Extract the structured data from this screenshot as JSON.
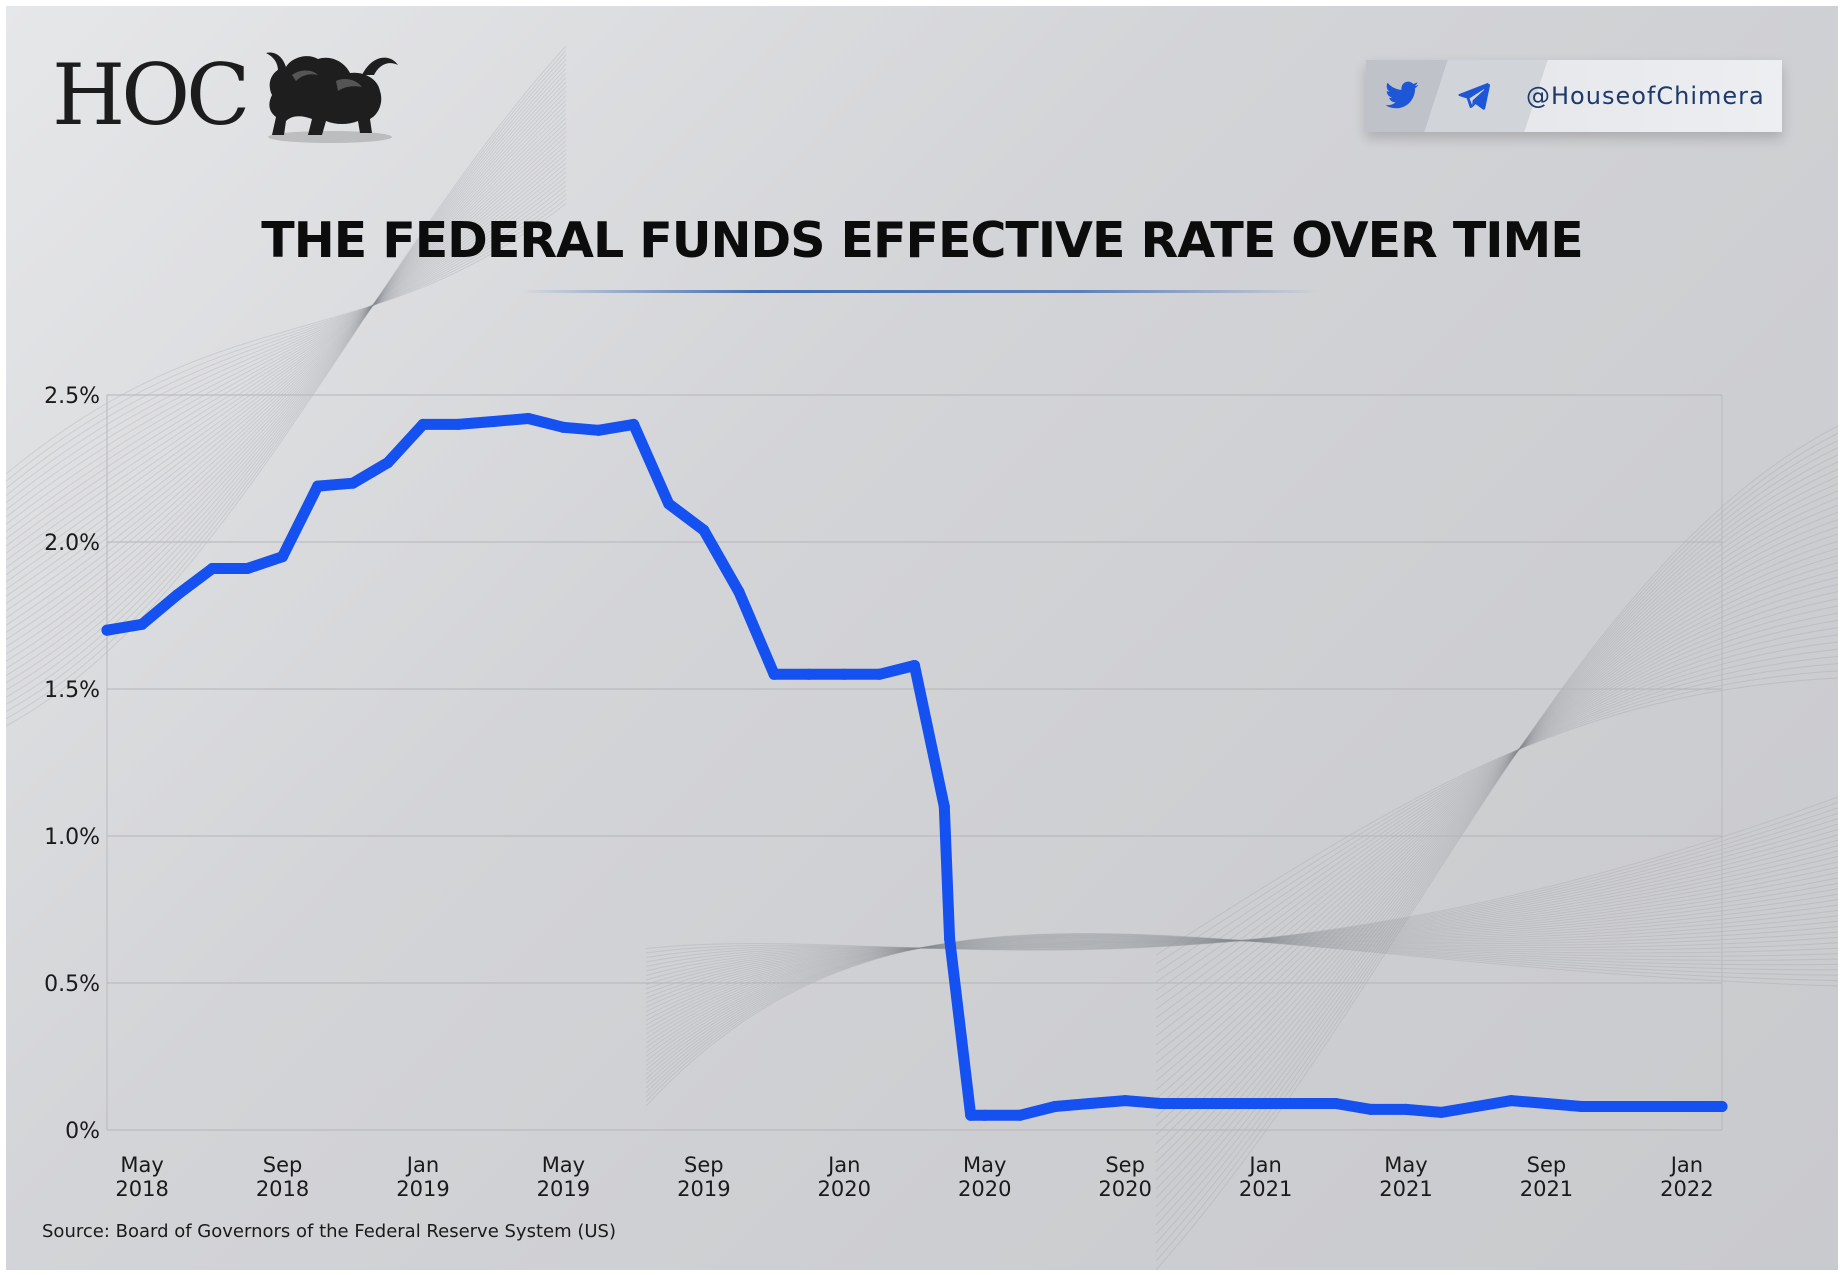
{
  "brand": {
    "logo_text": "HOC",
    "handle": "@HouseofChimera",
    "icons": [
      "twitter-icon",
      "telegram-icon",
      "lion-goat-emblem-icon"
    ],
    "accent_color": "#1550f0",
    "title_line_color": "#3f6db3"
  },
  "title": "THE FEDERAL FUNDS EFFECTIVE RATE OVER TIME",
  "source": "Source: Board of Governors of the Federal Reserve System (US)",
  "chart_data": {
    "type": "line",
    "title": "THE FEDERAL FUNDS EFFECTIVE RATE OVER TIME",
    "xlabel": "",
    "ylabel": "",
    "ylim": [
      0,
      2.5
    ],
    "yticks": [
      0,
      0.5,
      1.0,
      1.5,
      2.0,
      2.5
    ],
    "ytick_labels": [
      "0%",
      "0.5%",
      "1.0%",
      "1.5%",
      "2.0%",
      "2.5%"
    ],
    "grid": true,
    "x_start": "2018-04",
    "xtick_labels": [
      {
        "m": 1,
        "month": "May",
        "year": "2018"
      },
      {
        "m": 5,
        "month": "Sep",
        "year": "2018"
      },
      {
        "m": 9,
        "month": "Jan",
        "year": "2019"
      },
      {
        "m": 13,
        "month": "May",
        "year": "2019"
      },
      {
        "m": 17,
        "month": "Sep",
        "year": "2019"
      },
      {
        "m": 21,
        "month": "Jan",
        "year": "2020"
      },
      {
        "m": 25,
        "month": "May",
        "year": "2020"
      },
      {
        "m": 29,
        "month": "Sep",
        "year": "2020"
      },
      {
        "m": 33,
        "month": "Jan",
        "year": "2021"
      },
      {
        "m": 37,
        "month": "May",
        "year": "2021"
      },
      {
        "m": 41,
        "month": "Sep",
        "year": "2021"
      },
      {
        "m": 45,
        "month": "Jan",
        "year": "2022"
      }
    ],
    "series": [
      {
        "name": "Federal Funds Effective Rate",
        "color": "#1550f0",
        "x": [
          0,
          1,
          2,
          3,
          4,
          5,
          6,
          7,
          8,
          9,
          10,
          11,
          12,
          13,
          14,
          15,
          16,
          17,
          18,
          19,
          20,
          21,
          22,
          23,
          23.85,
          24,
          24.6,
          25,
          26,
          27,
          28,
          29,
          30,
          31,
          32,
          33,
          34,
          35,
          36,
          37,
          38,
          39,
          40,
          41,
          42,
          43,
          44,
          45,
          46
        ],
        "values": [
          1.7,
          1.72,
          1.82,
          1.91,
          1.91,
          1.95,
          2.19,
          2.2,
          2.27,
          2.4,
          2.4,
          2.41,
          2.42,
          2.39,
          2.38,
          2.4,
          2.13,
          2.04,
          1.83,
          1.55,
          1.55,
          1.55,
          1.55,
          1.58,
          1.1,
          0.65,
          0.05,
          0.05,
          0.05,
          0.08,
          0.09,
          0.1,
          0.09,
          0.09,
          0.09,
          0.09,
          0.09,
          0.09,
          0.07,
          0.07,
          0.06,
          0.08,
          0.1,
          0.09,
          0.08,
          0.08,
          0.08,
          0.08,
          0.08
        ]
      }
    ]
  }
}
